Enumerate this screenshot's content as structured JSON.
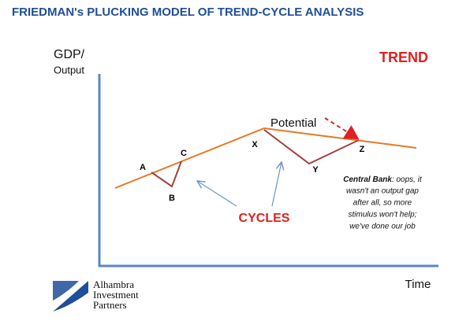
{
  "title": "FRIEDMAN's PLUCKING MODEL OF TREND-CYCLE ANALYSIS",
  "y_axis_label": [
    "GDP/",
    "Output"
  ],
  "x_axis_label": "Time",
  "trend_label": "TREND",
  "potential_label": "Potential",
  "points": [
    "A",
    "B",
    "C",
    "X",
    "Y",
    "Z"
  ],
  "cycles_label": "CYCLES",
  "note": {
    "bold_lead": "Central Bank",
    "lines": [
      ": oops, it",
      "wasn't an output gap",
      "after all, so more",
      "stimulus won't help;",
      "we've done our job"
    ]
  },
  "logo": [
    "Alhambra",
    "Investment",
    "Partners"
  ]
}
